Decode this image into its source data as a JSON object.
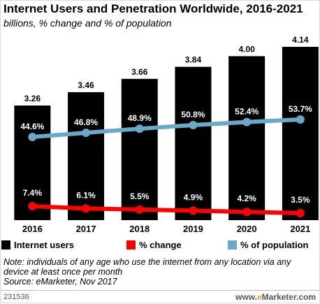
{
  "chart_data": {
    "type": "bar",
    "title": "Internet Users and Penetration Worldwide, 2016-2021",
    "subtitle": "billions, % change and % of population",
    "categories": [
      "2016",
      "2017",
      "2018",
      "2019",
      "2020",
      "2021"
    ],
    "bar_labels": [
      "3.26",
      "3.46",
      "3.66",
      "3.84",
      "4.00",
      "4.14"
    ],
    "pop_labels": [
      "44.6%",
      "46.8%",
      "48.9%",
      "50.8%",
      "52.4%",
      "53.7%"
    ],
    "chg_labels": [
      "7.4%",
      "6.1%",
      "5.5%",
      "4.9%",
      "4.2%",
      "3.5%"
    ],
    "series": [
      {
        "name": "Internet users",
        "kind": "bar",
        "color": "#000000",
        "values": [
          3.26,
          3.46,
          3.66,
          3.84,
          4.0,
          4.14
        ]
      },
      {
        "name": "% change",
        "kind": "line",
        "color": "#ff0000",
        "values": [
          7.4,
          6.1,
          5.5,
          4.9,
          4.2,
          3.5
        ]
      },
      {
        "name": "% of population",
        "kind": "line",
        "color": "#6aa8c8",
        "values": [
          44.6,
          46.8,
          48.9,
          50.8,
          52.4,
          53.7
        ]
      }
    ],
    "legend_position": "bottom",
    "grid": false
  },
  "note": "Note: individuals of any age who use the internet from any location via any device at least once per month",
  "source": "Source: eMarketer, Nov 2017",
  "footer": {
    "id": "231536",
    "brand_prefix": "www.",
    "brand_e": "e",
    "brand_rest": "Marketer",
    "brand_suffix": ".com"
  }
}
